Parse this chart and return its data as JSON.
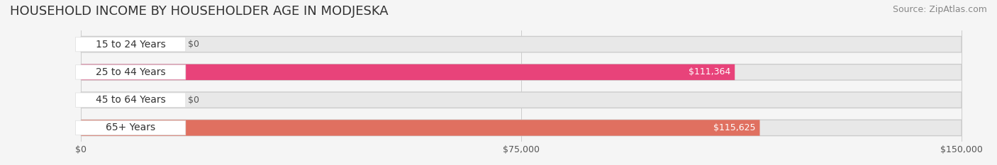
{
  "title": "HOUSEHOLD INCOME BY HOUSEHOLDER AGE IN MODJESKA",
  "source": "Source: ZipAtlas.com",
  "categories": [
    "15 to 24 Years",
    "25 to 44 Years",
    "45 to 64 Years",
    "65+ Years"
  ],
  "values": [
    0,
    111364,
    0,
    115625
  ],
  "bar_colors": [
    "#a0a8d0",
    "#e8437a",
    "#f0c898",
    "#e07060"
  ],
  "bar_bg_color": "#e8e8e8",
  "label_bg_color": "#ffffff",
  "xlim": [
    0,
    150000
  ],
  "xticks": [
    0,
    75000,
    150000
  ],
  "xtick_labels": [
    "$0",
    "$75,000",
    "$150,000"
  ],
  "value_labels": [
    "$0",
    "$111,364",
    "$0",
    "$115,625"
  ],
  "fig_bg_color": "#f5f5f5",
  "bar_height": 0.55,
  "title_fontsize": 13,
  "source_fontsize": 9,
  "label_fontsize": 10,
  "value_fontsize": 9
}
